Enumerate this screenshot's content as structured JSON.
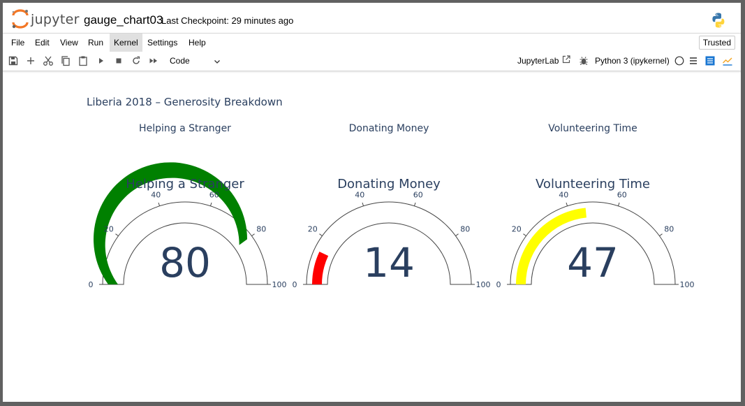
{
  "header": {
    "logo_text": "jupyter",
    "notebook_name": "gauge_chart03",
    "checkpoint": "Last Checkpoint: 29 minutes ago"
  },
  "menubar": {
    "items": [
      "File",
      "Edit",
      "View",
      "Run",
      "Kernel",
      "Settings",
      "Help"
    ],
    "active": "Kernel",
    "trusted_label": "Trusted"
  },
  "toolbar": {
    "icons": [
      "save-icon",
      "add-cell-icon",
      "cut-icon",
      "copy-icon",
      "paste-icon",
      "run-icon",
      "stop-icon",
      "restart-icon",
      "fast-forward-icon"
    ],
    "cell_type": "Code",
    "jupyterlab_label": "JupyterLab",
    "kernel_label": "Python 3 (ipykernel)"
  },
  "figure": {
    "title": "Liberia 2018 – Generosity Breakdown"
  },
  "chart_data": [
    {
      "type": "gauge",
      "subplot_title": "Helping a Stranger",
      "title": "Helping a Stranger",
      "value": 80,
      "range": [
        0,
        100
      ],
      "ticks": [
        0,
        20,
        40,
        60,
        80,
        100
      ],
      "bar_color": "#008000"
    },
    {
      "type": "gauge",
      "subplot_title": "Donating Money",
      "title": "Donating Money",
      "value": 14,
      "range": [
        0,
        100
      ],
      "ticks": [
        0,
        20,
        40,
        60,
        80,
        100
      ],
      "bar_color": "#ff0000"
    },
    {
      "type": "gauge",
      "subplot_title": "Volunteering Time",
      "title": "Volunteering Time",
      "value": 47,
      "range": [
        0,
        100
      ],
      "ticks": [
        0,
        20,
        40,
        60,
        80,
        100
      ],
      "bar_color": "#ffff00"
    }
  ],
  "colors": {
    "text": "#2a3f5f",
    "gauge_outline": "#444444"
  }
}
